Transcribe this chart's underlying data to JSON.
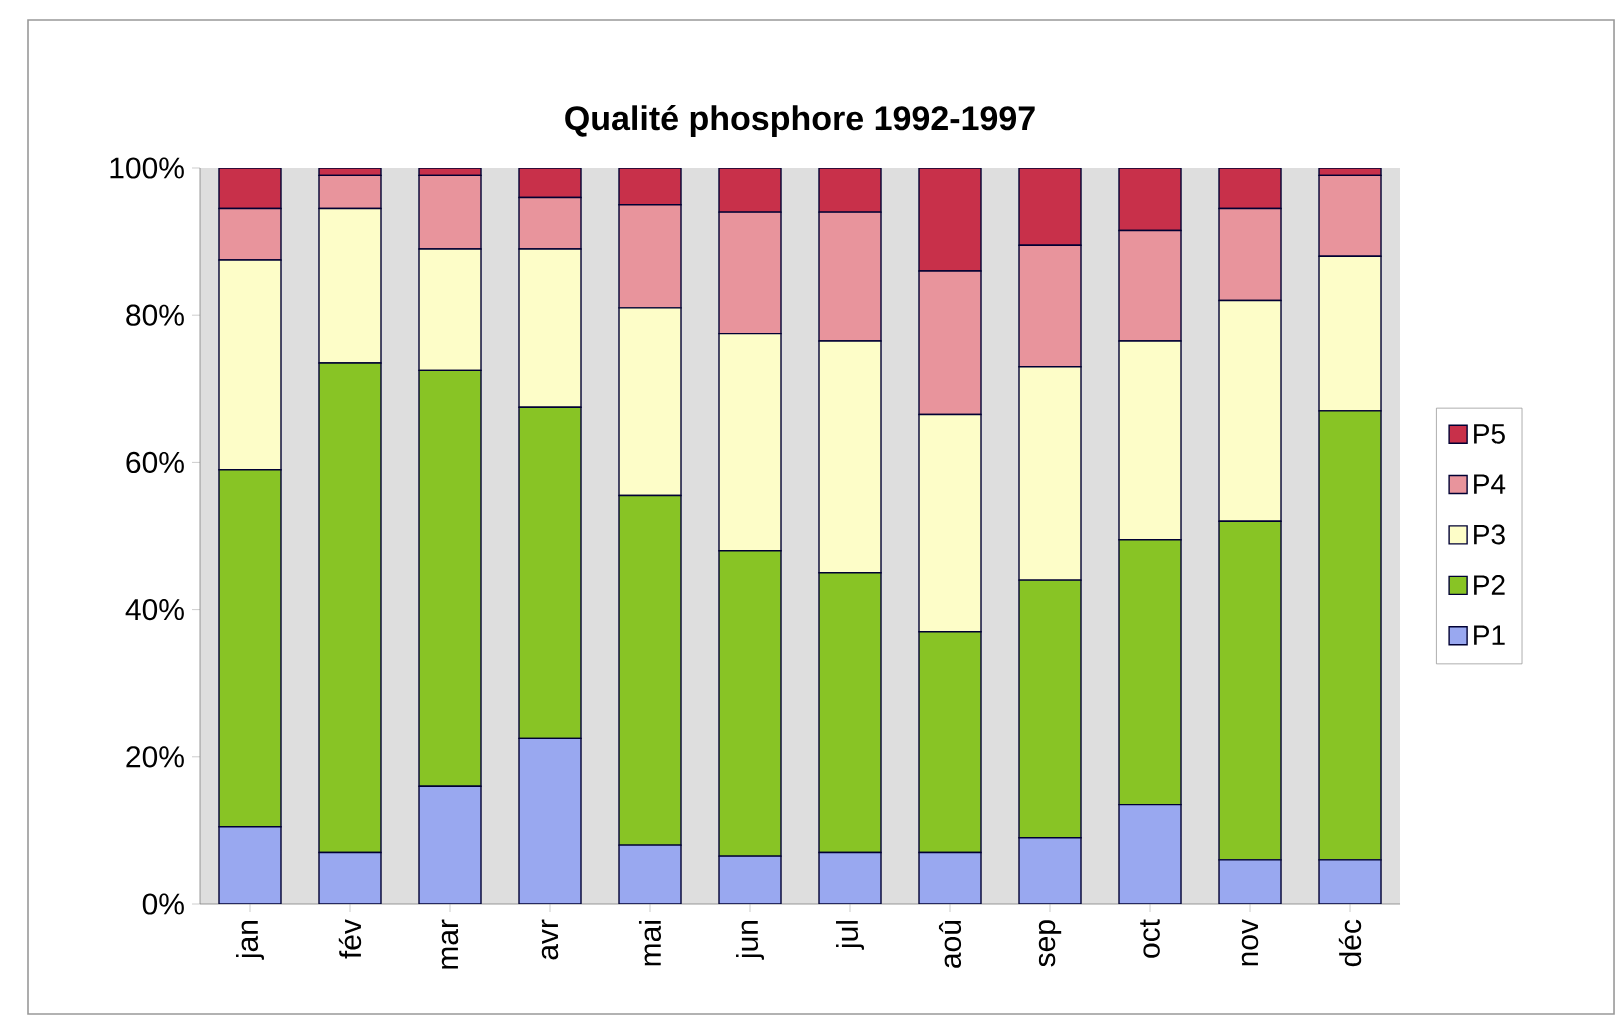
{
  "chart_data": {
    "type": "bar",
    "stacked": true,
    "title": "Qualité phosphore 1992-1997",
    "categories": [
      "jan",
      "fév",
      "mar",
      "avr",
      "mai",
      "jun",
      "jul",
      "aoû",
      "sep",
      "oct",
      "nov",
      "déc"
    ],
    "series": [
      {
        "name": "P1",
        "color": "#99a8f0",
        "values": [
          10.5,
          7,
          16,
          22.5,
          8,
          6.5,
          7,
          7,
          9,
          13.5,
          6,
          6
        ]
      },
      {
        "name": "P2",
        "color": "#88c425",
        "values": [
          48.5,
          66.5,
          56.5,
          45,
          47.5,
          41.5,
          38,
          30,
          35,
          36,
          46,
          61
        ]
      },
      {
        "name": "P3",
        "color": "#fdfdc8",
        "values": [
          28.5,
          21,
          16.5,
          21.5,
          25.5,
          29.5,
          31.5,
          29.5,
          29,
          27,
          30,
          21
        ]
      },
      {
        "name": "P4",
        "color": "#e8949c",
        "values": [
          7,
          4.5,
          10,
          7,
          14,
          16.5,
          17.5,
          19.5,
          16.5,
          15,
          12.5,
          11
        ]
      },
      {
        "name": "P5",
        "color": "#c8304a",
        "values": [
          5.5,
          1,
          1,
          4,
          5,
          6,
          6,
          14,
          10.5,
          8.5,
          5.5,
          1
        ]
      }
    ],
    "ylim": [
      0,
      100
    ],
    "yticks": [
      {
        "value": 0,
        "label": "0%"
      },
      {
        "value": 20,
        "label": "20%"
      },
      {
        "value": 40,
        "label": "40%"
      },
      {
        "value": 60,
        "label": "60%"
      },
      {
        "value": 80,
        "label": "80%"
      },
      {
        "value": 100,
        "label": "100%"
      }
    ],
    "legend": "right"
  }
}
